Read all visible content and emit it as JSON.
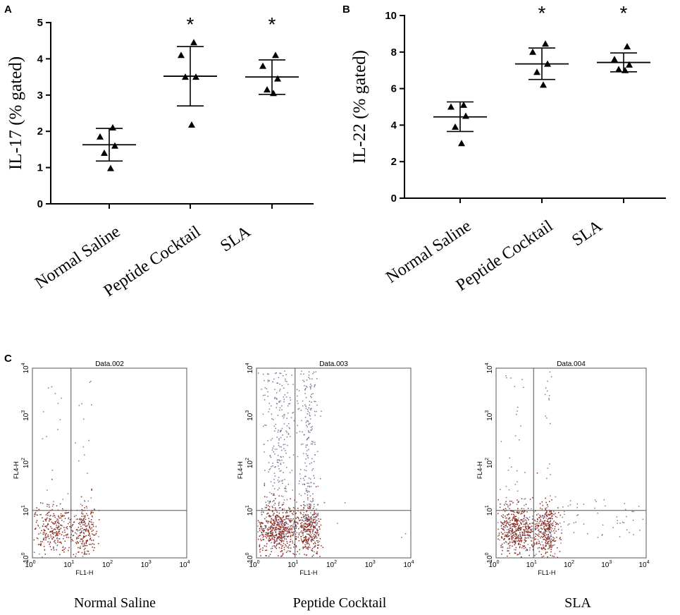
{
  "chart_data": [
    {
      "type": "scatter",
      "panel": "A",
      "ylabel": "IL-17 (% gated)",
      "ylim": [
        0,
        5
      ],
      "yticks": [
        "0",
        "1",
        "2",
        "3",
        "4",
        "5"
      ],
      "categories": [
        "Normal Saline",
        "Peptide Cocktail",
        "SLA"
      ],
      "points": [
        [
          2.1,
          1.85,
          1.6,
          1.4,
          0.98
        ],
        [
          4.45,
          4.1,
          3.5,
          3.5,
          2.18
        ],
        [
          4.1,
          3.8,
          3.45,
          3.15,
          3.05
        ]
      ],
      "mean": [
        1.63,
        3.52,
        3.5
      ],
      "sd_low": [
        1.18,
        2.7,
        3.02
      ],
      "sd_high": [
        2.08,
        4.34,
        3.97
      ],
      "significance": [
        "",
        "*",
        "*"
      ]
    },
    {
      "type": "scatter",
      "panel": "B",
      "ylabel": "IL-22 (% gated)",
      "ylim": [
        0,
        10
      ],
      "yticks": [
        "0",
        "2",
        "4",
        "6",
        "8",
        "10"
      ],
      "categories": [
        "Normal Saline",
        "Peptide Cocktail",
        "SLA"
      ],
      "points": [
        [
          5.1,
          5.0,
          4.5,
          3.9,
          3.0
        ],
        [
          8.45,
          8.0,
          7.35,
          6.9,
          6.2
        ],
        [
          8.3,
          7.6,
          7.3,
          7.05,
          7.0
        ]
      ],
      "mean": [
        4.45,
        7.35,
        7.43
      ],
      "sd_low": [
        3.65,
        6.5,
        6.92
      ],
      "sd_high": [
        5.27,
        8.22,
        7.95
      ],
      "significance": [
        "",
        "*",
        "*"
      ]
    },
    {
      "type": "scatter",
      "panel": "C",
      "plots": [
        {
          "title": "Data.002",
          "caption": "Normal Saline",
          "xlabel": "FL1-H",
          "ylabel": "FL4-H",
          "gate_x": 10,
          "gate_y": 10
        },
        {
          "title": "Data.003",
          "caption": "Peptide Cocktail",
          "xlabel": "FL1-H",
          "ylabel": "FL4-H",
          "gate_x": 10,
          "gate_y": 10
        },
        {
          "title": "Data.004",
          "caption": "SLA",
          "xlabel": "FL1-H",
          "ylabel": "FL4-H",
          "gate_x": 10,
          "gate_y": 10
        }
      ],
      "ticks_exp": [
        "0",
        "1",
        "2",
        "3",
        "4"
      ],
      "tick_base": "10"
    }
  ],
  "labels": {
    "a": "A",
    "b": "B",
    "c": "C"
  },
  "style": {
    "marker": "#000000",
    "dot_dense": "#8a2a1f",
    "dot_sparse": "#7a7a9a"
  }
}
